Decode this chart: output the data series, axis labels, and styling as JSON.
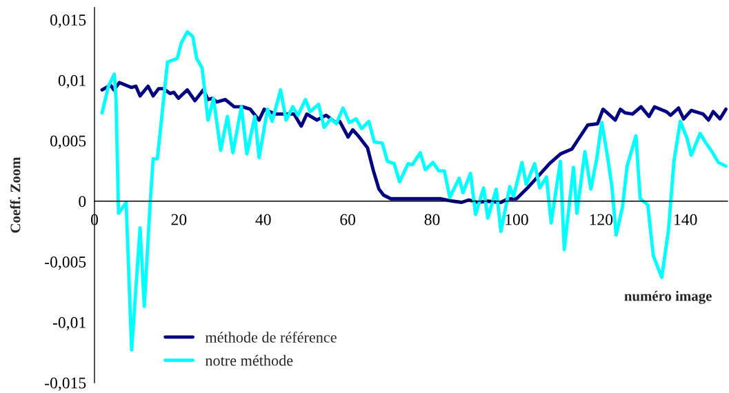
{
  "chart_data": {
    "type": "line",
    "xlabel": "numéro image",
    "ylabel": "Coeff. Zoom",
    "xlim": [
      0,
      150
    ],
    "xticks": [
      0,
      20,
      40,
      60,
      80,
      100,
      120,
      140
    ],
    "ylim": [
      -0.015,
      0.016
    ],
    "yticks": [
      {
        "value": -0.015,
        "label": "-0,015"
      },
      {
        "value": -0.01,
        "label": "-0,01"
      },
      {
        "value": -0.005,
        "label": "-0,005"
      },
      0,
      {
        "value": 0.005,
        "label": "0,005"
      },
      {
        "value": 0.01,
        "label": "0,01"
      },
      {
        "value": 0.015,
        "label": "0,015"
      }
    ],
    "grid": false,
    "legend": "bottom left",
    "marker": "none",
    "line_style": "solid",
    "series": [
      {
        "name": "méthode de référence",
        "color": "#000080",
        "x": [
          1.8,
          3.8,
          4.6,
          5.9,
          8.7,
          9.8,
          10.8,
          12.7,
          13.9,
          15.2,
          16.3,
          17.9,
          18.8,
          19.9,
          22,
          23.8,
          25.8,
          26.9,
          27.9,
          29,
          31,
          33.1,
          35.1,
          36.9,
          39,
          40.2,
          42.9,
          45,
          47.3,
          49,
          50.3,
          52.7,
          54.9,
          57.1,
          58.1,
          60.1,
          61.2,
          62.5,
          64.7,
          66.1,
          67.4,
          68.5,
          70.2,
          74,
          77.7,
          82.1,
          84.9,
          87,
          88.7,
          90.8,
          93,
          96.3,
          98,
          100,
          102.9,
          105.5,
          107.8,
          110.4,
          113.1,
          114.8,
          116.9,
          119.2,
          120.5,
          121.8,
          123.4,
          124.6,
          125.7,
          127.5,
          129.5,
          131.4,
          132.7,
          135.5,
          136.5,
          138.4,
          139.6,
          141.4,
          144.2,
          145.5,
          146.6,
          148.2,
          149.6
        ],
        "values": [
          0.0092,
          0.0096,
          0.0092,
          0.0098,
          0.0094,
          0.0095,
          0.0087,
          0.0095,
          0.0087,
          0.0093,
          0.0093,
          0.0089,
          0.009,
          0.0085,
          0.0092,
          0.0083,
          0.0092,
          0.0084,
          0.0085,
          0.0082,
          0.0084,
          0.0078,
          0.0078,
          0.0076,
          0.0067,
          0.0076,
          0.0072,
          0.0072,
          0.0072,
          0.0062,
          0.0072,
          0.0067,
          0.0071,
          0.0065,
          0.0066,
          0.0053,
          0.0059,
          0.0054,
          0.0044,
          0.0025,
          0.001,
          0.0005,
          0.0002,
          0.0002,
          0.0002,
          0.0002,
          0.0,
          -0.0001,
          0.0001,
          -0.0001,
          0.0,
          -0.0001,
          0.0002,
          0.0002,
          0.0012,
          0.0022,
          0.0031,
          0.0039,
          0.0043,
          0.0052,
          0.0063,
          0.0064,
          0.0076,
          0.0072,
          0.0067,
          0.0076,
          0.0073,
          0.0072,
          0.0078,
          0.007,
          0.0078,
          0.0074,
          0.0071,
          0.0077,
          0.0068,
          0.0075,
          0.0072,
          0.0067,
          0.0074,
          0.0068,
          0.0076
        ]
      },
      {
        "name": "notre méthode",
        "color": "#00ffff",
        "x": [
          1.8,
          3.3,
          4.7,
          5.1,
          5.7,
          7.5,
          8.8,
          10.8,
          11.8,
          13.2,
          13.9,
          14.9,
          17.3,
          19.6,
          20.6,
          22,
          23.3,
          24.2,
          25.5,
          26.9,
          28.2,
          29.9,
          31.5,
          32.8,
          34.8,
          36.1,
          38,
          39,
          41,
          42.1,
          44.1,
          45.4,
          47,
          48.2,
          50,
          51.1,
          53.1,
          54.4,
          56,
          57.3,
          58.9,
          60.4,
          62,
          63.3,
          65,
          66.3,
          68.2,
          69.4,
          71,
          72.3,
          74.3,
          75.3,
          77.2,
          78.4,
          80.2,
          81.6,
          82.9,
          84.2,
          86.4,
          87.3,
          89.1,
          90.3,
          92.2,
          93.2,
          95.2,
          96.3,
          98.4,
          99.3,
          101.3,
          102.3,
          104.3,
          105.5,
          107.1,
          108.2,
          110.4,
          111.3,
          113.5,
          114.3,
          116.2,
          117.6,
          119,
          120.2,
          121.6,
          122.6,
          123.6,
          125.1,
          126.2,
          128.3,
          129.3,
          131.1,
          132.4,
          134.4,
          136,
          137.3,
          138.8,
          140.4,
          141.4,
          143.5,
          144.7,
          146.3,
          147.8,
          149.6
        ],
        "values": [
          0.0073,
          0.0095,
          0.0105,
          0.0084,
          -0.001,
          -0.0001,
          -0.0123,
          -0.0022,
          -0.0087,
          -0.0001,
          0.0035,
          0.0035,
          0.0115,
          0.0118,
          0.0131,
          0.014,
          0.0136,
          0.0118,
          0.011,
          0.0067,
          0.0085,
          0.0042,
          0.007,
          0.004,
          0.0078,
          0.0039,
          0.007,
          0.0036,
          0.0076,
          0.0066,
          0.0092,
          0.0067,
          0.0078,
          0.0071,
          0.0084,
          0.0074,
          0.008,
          0.0061,
          0.0068,
          0.0064,
          0.0077,
          0.0065,
          0.0068,
          0.006,
          0.0066,
          0.0049,
          0.0048,
          0.0033,
          0.0031,
          0.0016,
          0.0031,
          0.003,
          0.004,
          0.0026,
          0.0032,
          0.0025,
          0.0025,
          0.0003,
          0.0019,
          0.0007,
          0.0023,
          -0.0011,
          0.0011,
          -0.0014,
          0.001,
          -0.0025,
          0.0012,
          0.0004,
          0.0032,
          0.0014,
          0.0031,
          0.0011,
          0.002,
          -0.0018,
          0.0033,
          -0.004,
          0.0028,
          -0.001,
          0.0041,
          0.001,
          0.0035,
          0.0065,
          0.0036,
          0.0012,
          -0.0028,
          -0.0005,
          0.0029,
          0.0054,
          0.0002,
          -0.0003,
          -0.0045,
          -0.0063,
          -0.0024,
          0.0033,
          0.0066,
          0.0052,
          0.0038,
          0.0056,
          0.0049,
          0.0041,
          0.0032,
          0.0029
        ]
      }
    ]
  }
}
